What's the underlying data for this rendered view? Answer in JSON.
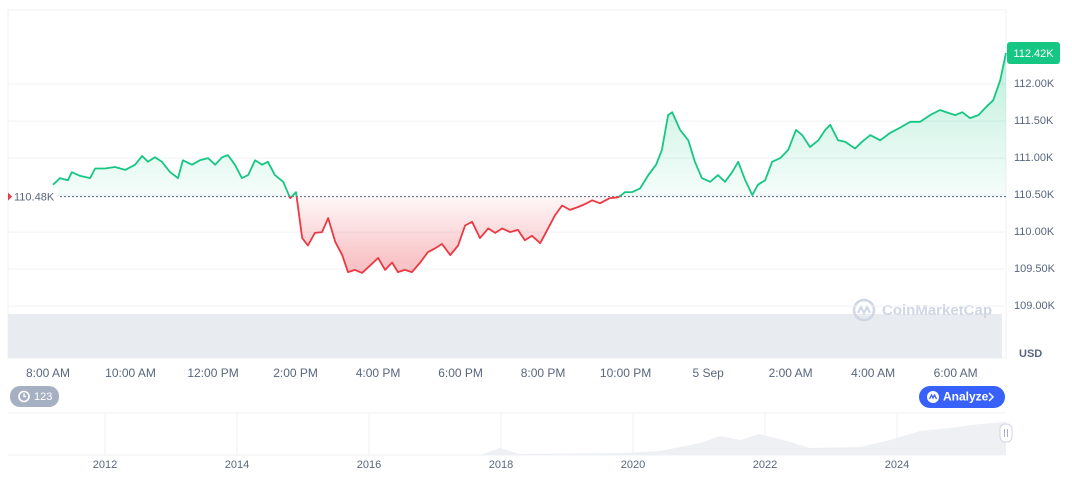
{
  "chart_data": {
    "type": "line",
    "x": [
      0.12,
      0.29,
      0.48,
      0.58,
      0.78,
      1.02,
      1.14,
      1.38,
      1.62,
      1.87,
      2.11,
      2.28,
      2.42,
      2.59,
      2.76,
      2.96,
      3.15,
      3.27,
      3.49,
      3.68,
      3.88,
      4.05,
      4.22,
      4.36,
      4.53,
      4.7,
      4.85,
      5.02,
      5.19,
      5.33,
      5.5,
      5.7,
      5.87,
      6.01,
      6.16,
      6.3,
      6.47,
      6.64,
      6.79,
      6.96,
      7.13,
      7.27,
      7.44,
      7.61,
      7.81,
      8.0,
      8.17,
      8.34,
      8.48,
      8.65,
      8.82,
      9.02,
      9.21,
      9.38,
      9.55,
      9.75,
      9.94,
      10.11,
      10.28,
      10.47,
      10.67,
      10.84,
      11.01,
      11.2,
      11.39,
      11.56,
      11.73,
      11.93,
      12.12,
      12.29,
      12.46,
      12.65,
      12.85,
      13.02,
      13.19,
      13.38,
      13.62,
      13.82,
      13.99,
      14.16,
      14.35,
      14.55,
      14.74,
      14.88,
      15.03,
      15.13,
      15.32,
      15.52,
      15.68,
      15.85,
      16.05,
      16.24,
      16.41,
      16.58,
      16.73,
      16.9,
      17.07,
      17.21,
      17.38,
      17.55,
      17.75,
      17.94,
      18.13,
      18.28,
      18.47,
      18.67,
      18.84,
      18.96,
      19.15,
      19.32,
      19.56,
      19.73,
      19.93,
      20.17,
      20.41,
      20.65,
      20.9,
      21.14,
      21.38,
      21.62,
      21.82,
      21.99,
      22.16,
      22.35,
      22.55,
      22.72,
      22.91,
      23.08,
      23.22
    ],
    "series": [
      {
        "name": "Price",
        "values": [
          110640,
          110730,
          110700,
          110810,
          110760,
          110730,
          110860,
          110860,
          110880,
          110840,
          110910,
          111030,
          110950,
          111010,
          110950,
          110810,
          110730,
          110970,
          110910,
          110970,
          111000,
          110910,
          111010,
          111040,
          110910,
          110730,
          110770,
          110970,
          110910,
          110950,
          110770,
          110680,
          110460,
          110540,
          109920,
          109820,
          109990,
          110000,
          110190,
          109870,
          109690,
          109460,
          109490,
          109450,
          109550,
          109650,
          109490,
          109590,
          109460,
          109490,
          109460,
          109590,
          109730,
          109780,
          109840,
          109690,
          109820,
          110090,
          110140,
          109920,
          110050,
          109990,
          110050,
          110000,
          110030,
          109890,
          109950,
          109850,
          110050,
          110230,
          110360,
          110300,
          110340,
          110380,
          110430,
          110390,
          110460,
          110470,
          110540,
          110540,
          110590,
          110770,
          110910,
          111110,
          111580,
          111620,
          111380,
          111240,
          110950,
          110730,
          110680,
          110770,
          110680,
          110810,
          110950,
          110700,
          110500,
          110640,
          110700,
          110950,
          111000,
          111110,
          111380,
          111310,
          111150,
          111240,
          111380,
          111450,
          111240,
          111220,
          111130,
          111220,
          111310,
          111240,
          111340,
          111410,
          111490,
          111490,
          111580,
          111650,
          111610,
          111580,
          111620,
          111540,
          111580,
          111680,
          111780,
          112050,
          112420
        ]
      }
    ],
    "up_color": "#16c784",
    "down_color": "#ea3943",
    "baseline": {
      "value": 110480,
      "label": "110.48K"
    },
    "last_price": {
      "value": 112420,
      "label": "112.42K"
    },
    "xlim": [
      -0.97,
      23.22
    ],
    "xticks": [
      {
        "value": 0,
        "label": "8:00 AM"
      },
      {
        "value": 2,
        "label": "10:00 AM"
      },
      {
        "value": 4,
        "label": "12:00 PM"
      },
      {
        "value": 6,
        "label": "2:00 PM"
      },
      {
        "value": 8,
        "label": "4:00 PM"
      },
      {
        "value": 10,
        "label": "6:00 PM"
      },
      {
        "value": 12,
        "label": "8:00 PM"
      },
      {
        "value": 14,
        "label": "10:00 PM"
      },
      {
        "value": 16,
        "label": "5 Sep"
      },
      {
        "value": 18,
        "label": "2:00 AM"
      },
      {
        "value": 20,
        "label": "4:00 AM"
      },
      {
        "value": 22,
        "label": "6:00 AM"
      }
    ],
    "ylim": [
      108300,
      113000
    ],
    "yticks": [
      {
        "value": 109000,
        "label": "109.00K"
      },
      {
        "value": 109500,
        "label": "109.50K"
      },
      {
        "value": 110000,
        "label": "110.00K"
      },
      {
        "value": 110500,
        "label": "110.50K"
      },
      {
        "value": 111000,
        "label": "111.00K"
      },
      {
        "value": 111500,
        "label": "111.50K"
      },
      {
        "value": 112000,
        "label": "112.00K"
      }
    ],
    "grid": true,
    "currency": "USD",
    "watermark": "CoinMarketCap",
    "history_badge": "123",
    "analyze_button": "Analyze",
    "navigator_years": [
      "2012",
      "2014",
      "2016",
      "2018",
      "2020",
      "2022",
      "2024"
    ]
  }
}
